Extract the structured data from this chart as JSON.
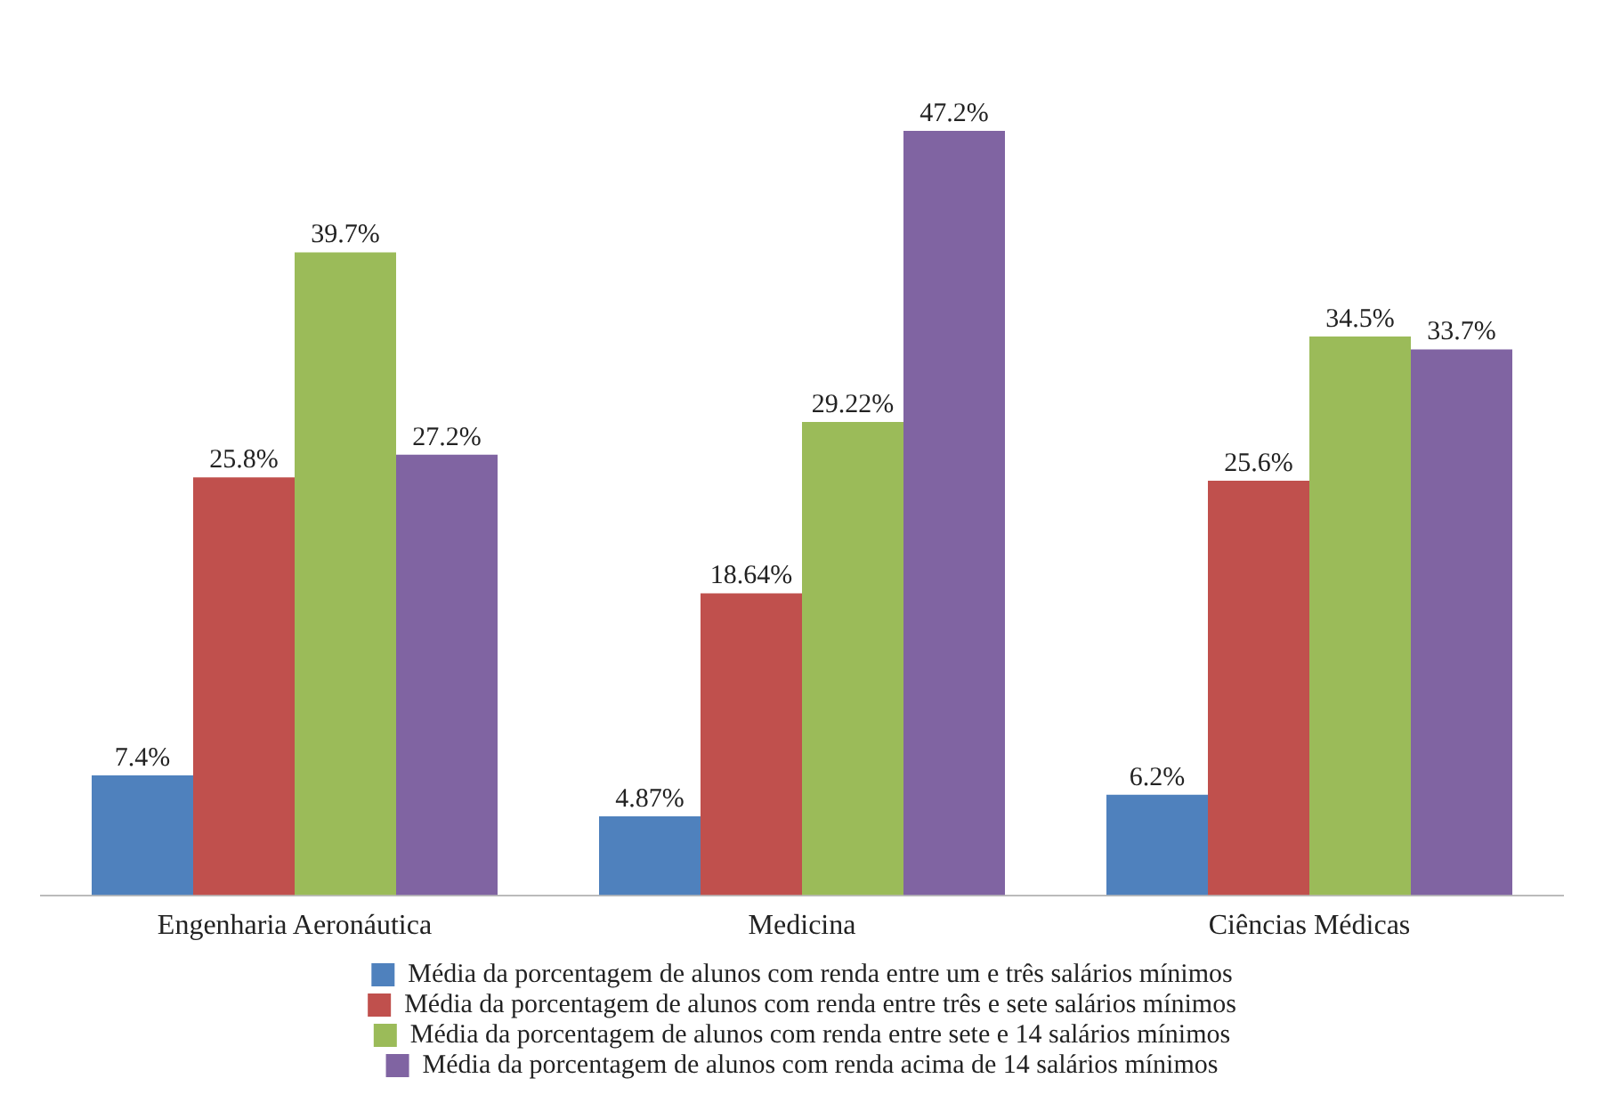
{
  "chart_data": {
    "type": "bar",
    "categories": [
      "Engenharia Aeronáutica",
      "Medicina",
      "Ciências Médicas"
    ],
    "series": [
      {
        "name": "Média da porcentagem de alunos com renda entre um e três salários mínimos",
        "color": "#4f81bd",
        "values": [
          7.4,
          4.87,
          6.2
        ],
        "value_labels": [
          "7.4%",
          "4.87%",
          "6.2%"
        ]
      },
      {
        "name": "Média da porcentagem de alunos com renda entre três e sete salários mínimos",
        "color": "#c0504d",
        "values": [
          25.8,
          18.64,
          25.6
        ],
        "value_labels": [
          "25.8%",
          "18.64%",
          "25.6%"
        ]
      },
      {
        "name": "Média da porcentagem de alunos com renda entre sete e 14 salários mínimos",
        "color": "#9bbb59",
        "values": [
          39.7,
          29.22,
          34.5
        ],
        "value_labels": [
          "39.7%",
          "29.22%",
          "34.5%"
        ]
      },
      {
        "name": "Média da porcentagem de alunos com renda acima de 14 salários mínimos",
        "color": "#8064a2",
        "values": [
          27.2,
          47.2,
          33.7
        ],
        "value_labels": [
          "27.2%",
          "47.2%",
          "33.7%"
        ]
      }
    ],
    "legend": "bottom",
    "grid": false,
    "tick_labels": "x"
  }
}
